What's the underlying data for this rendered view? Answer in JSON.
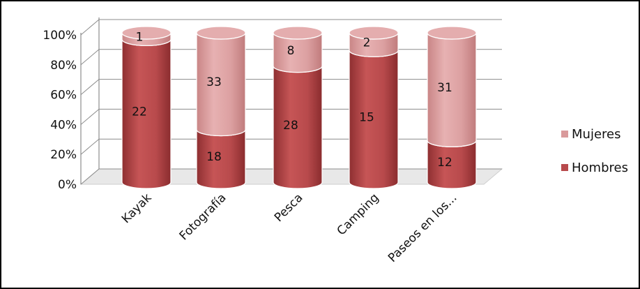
{
  "chart_data": {
    "type": "bar",
    "stacked": "percent",
    "style": "3d-cylinder",
    "categories": [
      "Kayak",
      "Fotografía",
      "Pesca",
      "Camping",
      "Paseos en los..."
    ],
    "series": [
      {
        "name": "Hombres",
        "values": [
          22,
          18,
          28,
          15,
          12
        ],
        "color": "#b84a4c"
      },
      {
        "name": "Mujeres",
        "values": [
          1,
          33,
          8,
          2,
          31
        ],
        "color": "#d99a9b"
      }
    ],
    "y_ticks": [
      "0%",
      "20%",
      "40%",
      "60%",
      "80%",
      "100%"
    ],
    "ylim": [
      0,
      100
    ],
    "grid": true,
    "legend_position": "right"
  }
}
